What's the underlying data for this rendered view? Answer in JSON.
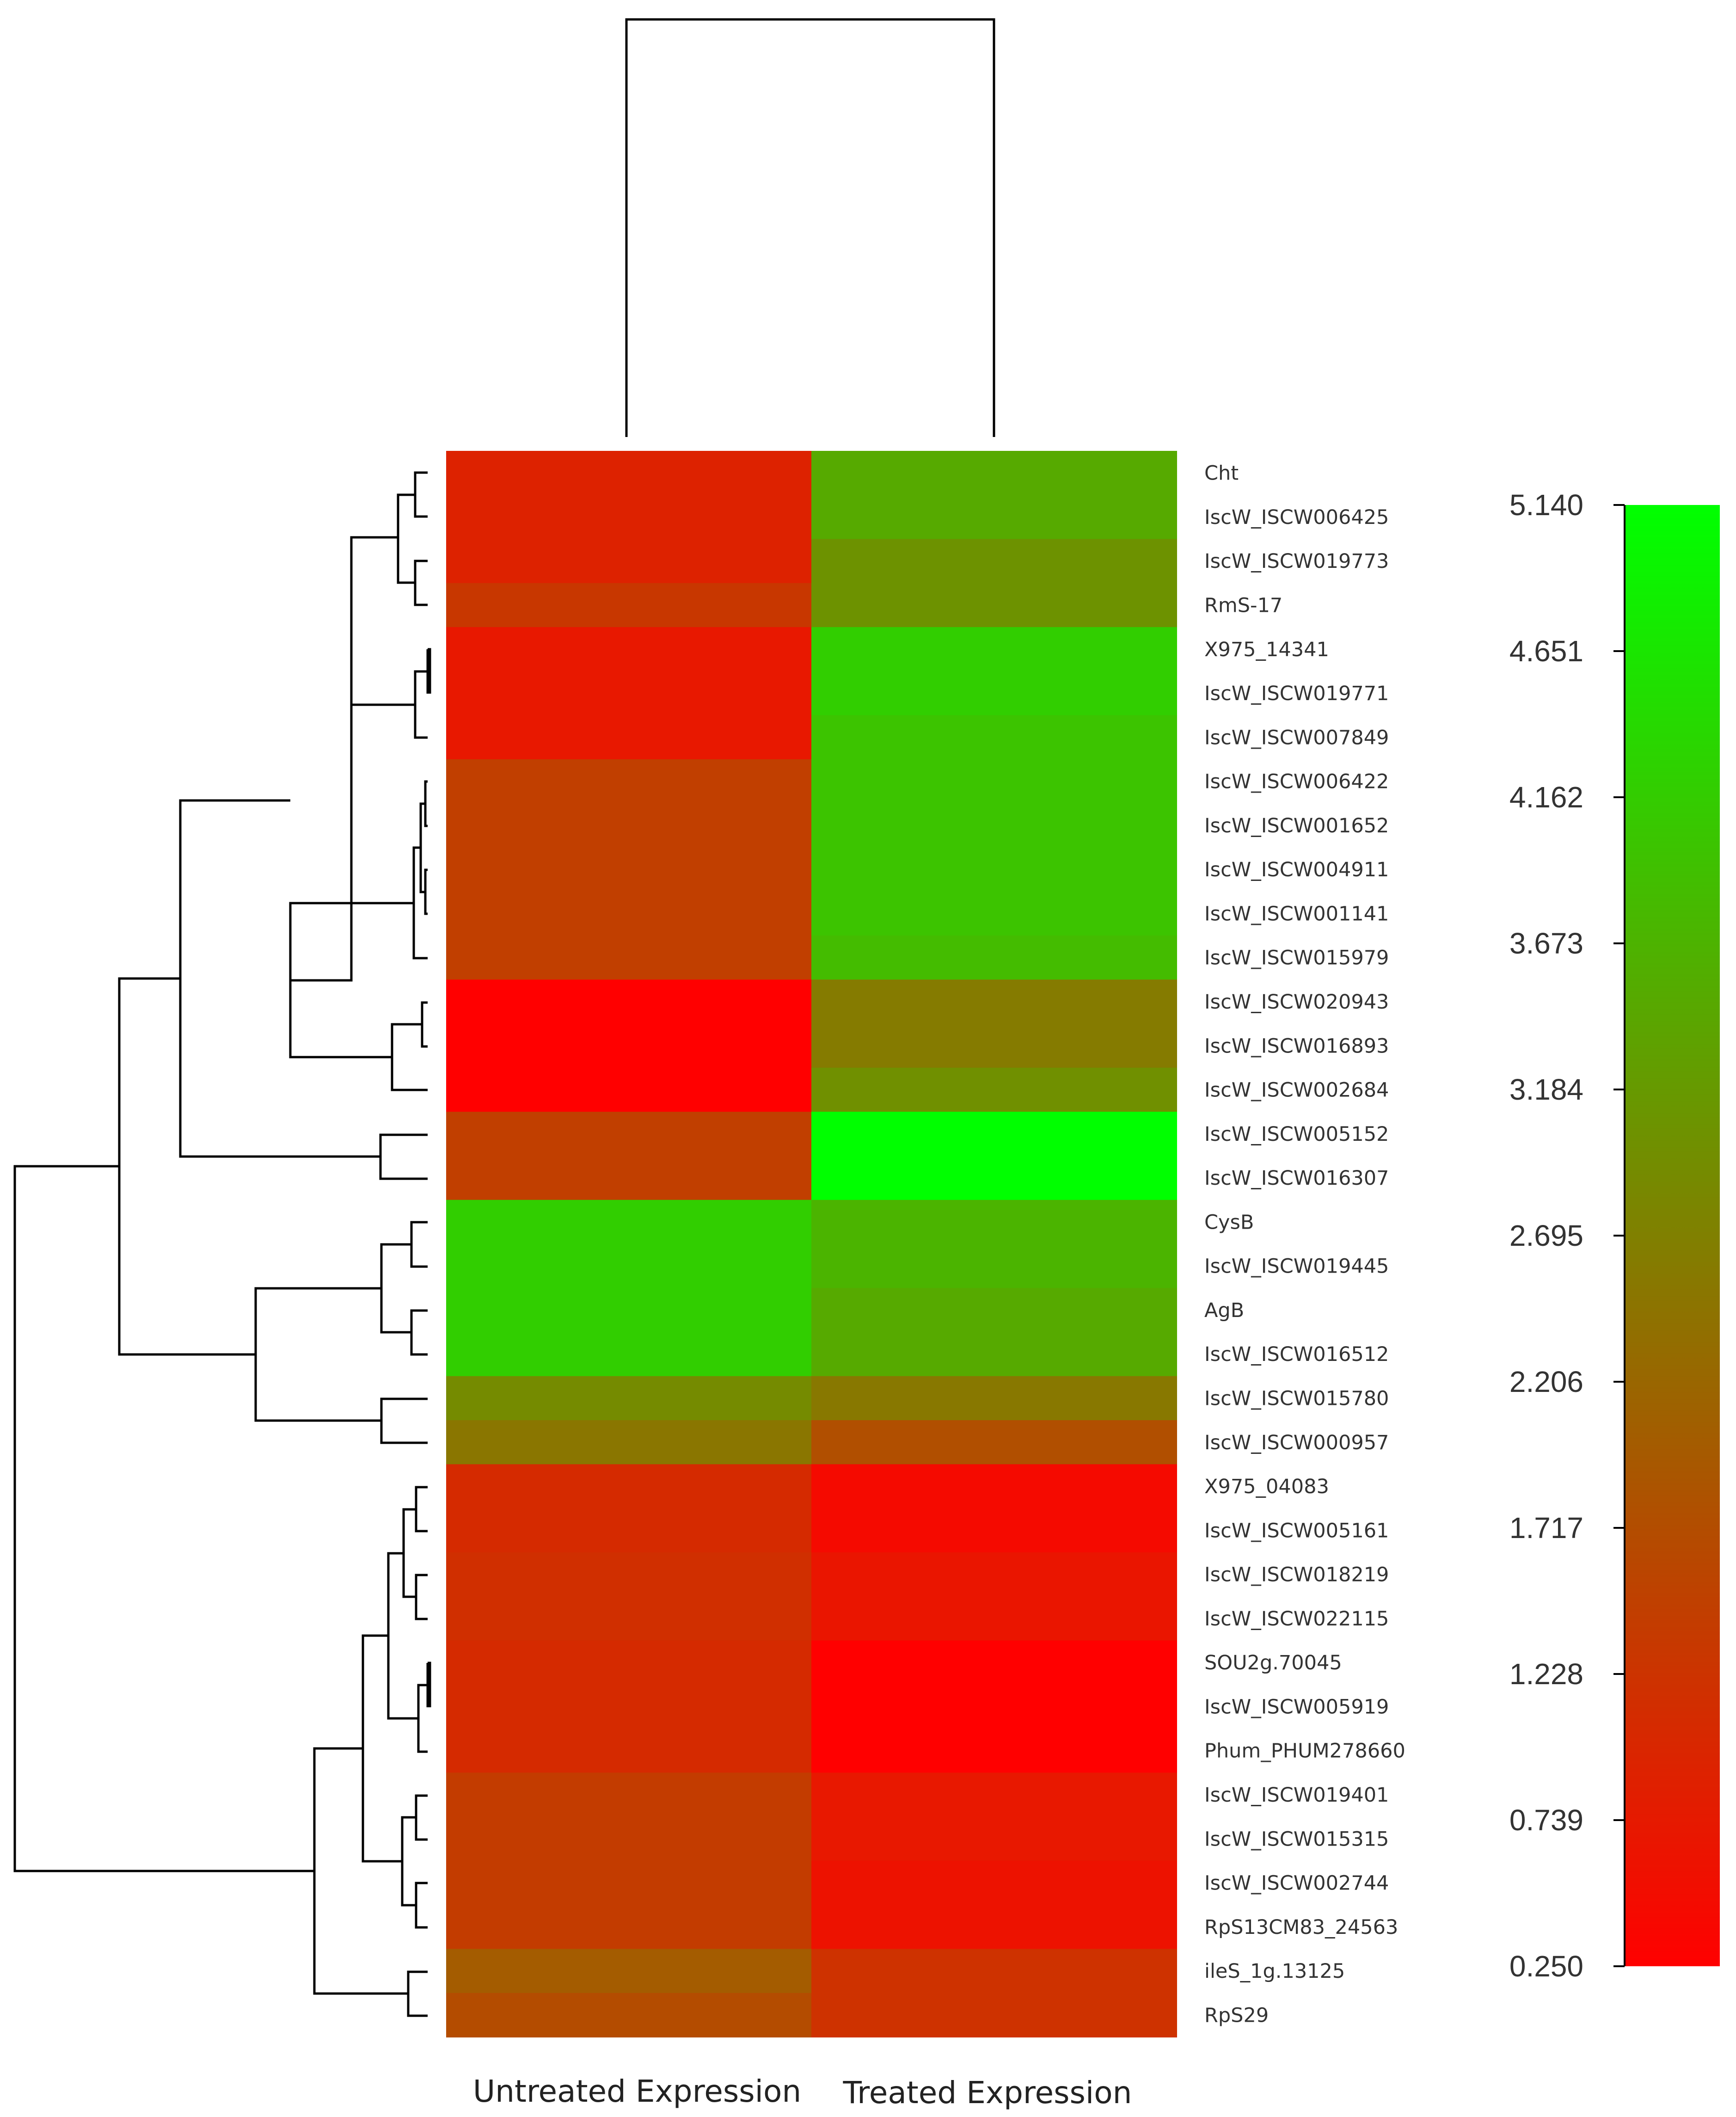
{
  "chart_data": {
    "type": "heatmap",
    "title": "",
    "columns": [
      "Untreated Expression",
      "Treated Expression"
    ],
    "rows": [
      "Cht",
      "IscW_ISCW006425",
      "IscW_ISCW019773",
      "RmS-17",
      "X975_14341",
      "IscW_ISCW019771",
      "IscW_ISCW007849",
      "IscW_ISCW006422",
      "IscW_ISCW001652",
      "IscW_ISCW004911",
      "IscW_ISCW001141",
      "IscW_ISCW015979",
      "IscW_ISCW020943",
      "IscW_ISCW016893",
      "IscW_ISCW002684",
      "IscW_ISCW005152",
      "IscW_ISCW016307",
      "CysB",
      "IscW_ISCW019445",
      "AgB",
      "IscW_ISCW016512",
      "IscW_ISCW015780",
      "IscW_ISCW000957",
      "X975_04083",
      "IscW_ISCW005161",
      "IscW_ISCW018219",
      "IscW_ISCW022115",
      "SOU2g.70045",
      "IscW_ISCW005919",
      "Phum_PHUM278660",
      "IscW_ISCW019401",
      "IscW_ISCW015315",
      "IscW_ISCW002744",
      "RpS13CM83_24563",
      "ileS_1g.13125",
      "RpS29"
    ],
    "values": [
      [
        0.9,
        3.5
      ],
      [
        0.9,
        3.5
      ],
      [
        0.9,
        3.05
      ],
      [
        1.3,
        3.05
      ],
      [
        0.7,
        4.2
      ],
      [
        0.7,
        4.2
      ],
      [
        0.7,
        4.0
      ],
      [
        1.45,
        4.0
      ],
      [
        1.45,
        4.0
      ],
      [
        1.45,
        4.0
      ],
      [
        1.45,
        4.0
      ],
      [
        1.45,
        3.85
      ],
      [
        0.25,
        2.6
      ],
      [
        0.25,
        2.6
      ],
      [
        0.25,
        3.0
      ],
      [
        1.45,
        5.14
      ],
      [
        1.45,
        5.14
      ],
      [
        4.2,
        3.7
      ],
      [
        4.2,
        3.7
      ],
      [
        4.2,
        3.5
      ],
      [
        4.2,
        3.5
      ],
      [
        2.9,
        2.55
      ],
      [
        2.5,
        1.75
      ],
      [
        1.05,
        0.45
      ],
      [
        1.05,
        0.45
      ],
      [
        1.15,
        0.65
      ],
      [
        1.15,
        0.65
      ],
      [
        1.05,
        0.25
      ],
      [
        1.05,
        0.25
      ],
      [
        1.05,
        0.25
      ],
      [
        1.4,
        0.7
      ],
      [
        1.4,
        0.7
      ],
      [
        1.4,
        0.6
      ],
      [
        1.4,
        0.6
      ],
      [
        2.0,
        1.2
      ],
      [
        1.7,
        1.2
      ]
    ],
    "color_scale": {
      "min": 0.25,
      "max": 5.14,
      "low_color": "#ff0000",
      "mid_color": "#808000",
      "high_color": "#00ff00",
      "tick_labels": [
        "5.140",
        "4.651",
        "4.162",
        "3.673",
        "3.184",
        "2.695",
        "2.206",
        "1.717",
        "1.228",
        "0.739",
        "0.250"
      ]
    },
    "row_dendrogram": "[[[[[[Cht,IscW_ISCW006425],[IscW_ISCW019773,RmS-17]],[[X975_14341,IscW_ISCW019771],IscW_ISCW007849]],[[[IscW_ISCW006422,IscW_ISCW001652],[IscW_ISCW004911,IscW_ISCW001141]],IscW_ISCW015979],[[IscW_ISCW020943,IscW_ISCW016893],IscW_ISCW002684]],[IscW_ISCW005152,IscW_ISCW016307]],[[[CysB,IscW_ISCW019445],[AgB,IscW_ISCW016512]],[IscW_ISCW015780,IscW_ISCW000957]]],[[[[[X975_04083,IscW_ISCW005161],[IscW_ISCW018219,IscW_ISCW022115]],[[SOU2g.70045,IscW_ISCW005919],Phum_PHUM278660]],[[IscW_ISCW019401,IscW_ISCW015315],[IscW_ISCW002744,RpS13CM83_24563]]],[ileS_1g.13125,RpS29]]]",
    "column_dendrogram": "[Untreated Expression,Treated Expression]"
  }
}
